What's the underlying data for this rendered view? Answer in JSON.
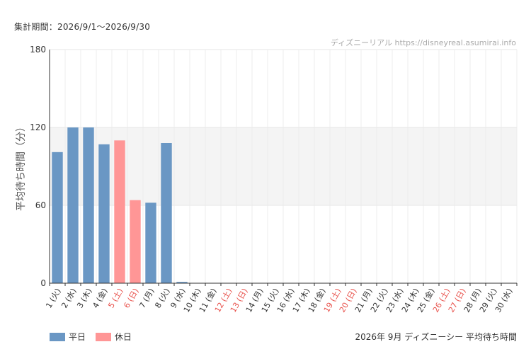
{
  "header": {
    "period_text": "集計期間：2026/9/1～2026/9/30"
  },
  "chart_data": {
    "type": "bar",
    "ylabel": "平均待ち時間（分）",
    "ylim": [
      0,
      180
    ],
    "yticks": [
      0,
      60,
      120,
      180
    ],
    "highlight_band": [
      60,
      120
    ],
    "watermark": "ディズニーリアル https://disneyreal.asumirai.info",
    "footer_title": "2026年 9月 ディズニーシー 平均待ち時間",
    "grid": true,
    "legend_position": "bottom-left",
    "series": [
      {
        "name": "平日",
        "color": "#6a97c4"
      },
      {
        "name": "休日",
        "color": "#ff9696"
      }
    ],
    "categories": [
      "1 (火)",
      "2 (水)",
      "3 (木)",
      "4 (金)",
      "5 (土)",
      "6 (日)",
      "7 (月)",
      "8 (火)",
      "9 (水)",
      "10 (木)",
      "11 (金)",
      "12 (土)",
      "13 (日)",
      "14 (月)",
      "15 (火)",
      "16 (水)",
      "17 (木)",
      "18 (金)",
      "19 (土)",
      "20 (日)",
      "21 (月)",
      "22 (火)",
      "23 (水)",
      "24 (木)",
      "25 (金)",
      "26 (土)",
      "27 (日)",
      "28 (月)",
      "29 (火)",
      "30 (水)"
    ],
    "holiday_flags": [
      false,
      false,
      false,
      false,
      true,
      true,
      false,
      false,
      false,
      false,
      false,
      true,
      true,
      false,
      false,
      false,
      false,
      false,
      true,
      true,
      false,
      false,
      false,
      false,
      false,
      true,
      true,
      false,
      false,
      false
    ],
    "values": [
      101,
      120,
      120,
      107,
      110,
      64,
      62,
      108,
      1,
      0,
      0,
      0,
      0,
      0,
      0,
      0,
      0,
      0,
      0,
      0,
      0,
      0,
      0,
      0,
      0,
      0,
      0,
      0,
      0,
      0
    ],
    "weekday_label_color": "#333333",
    "holiday_label_color": "#e8504a"
  }
}
